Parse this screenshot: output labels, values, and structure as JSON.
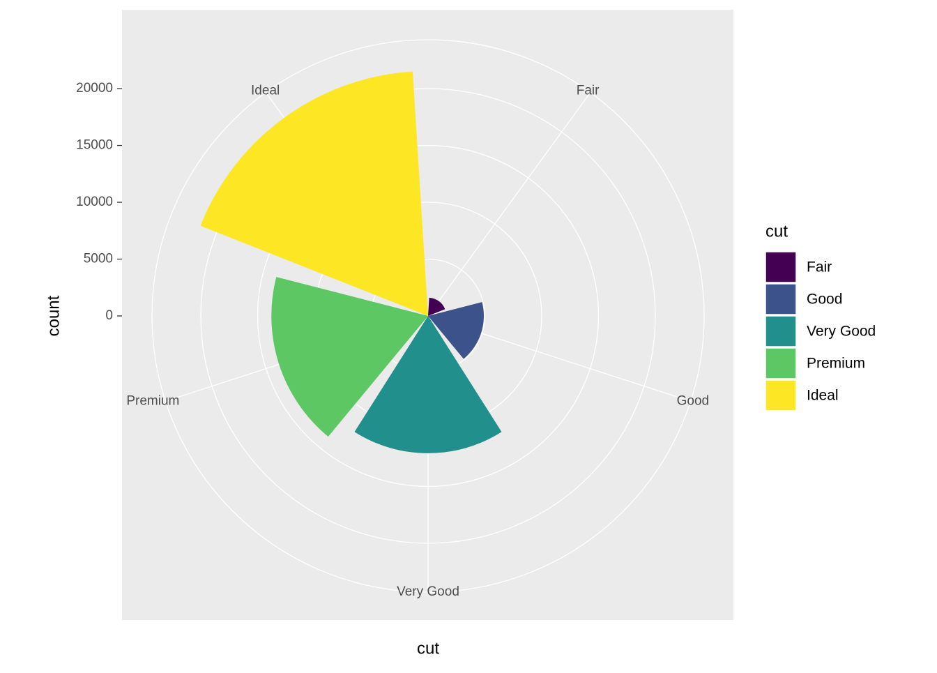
{
  "chart_data": {
    "type": "coxcomb",
    "x_label": "cut",
    "y_label": "count",
    "legend_title": "cut",
    "categories": [
      "Fair",
      "Good",
      "Very Good",
      "Premium",
      "Ideal"
    ],
    "values": [
      1610,
      4906,
      12082,
      13791,
      21551
    ],
    "colors": [
      "#440154",
      "#3B528B",
      "#21908C",
      "#5DC863",
      "#FDE725"
    ],
    "ylim": [
      0,
      21600
    ],
    "yticks": [
      0,
      5000,
      10000,
      15000,
      20000
    ],
    "grid": true,
    "legend": "right"
  }
}
